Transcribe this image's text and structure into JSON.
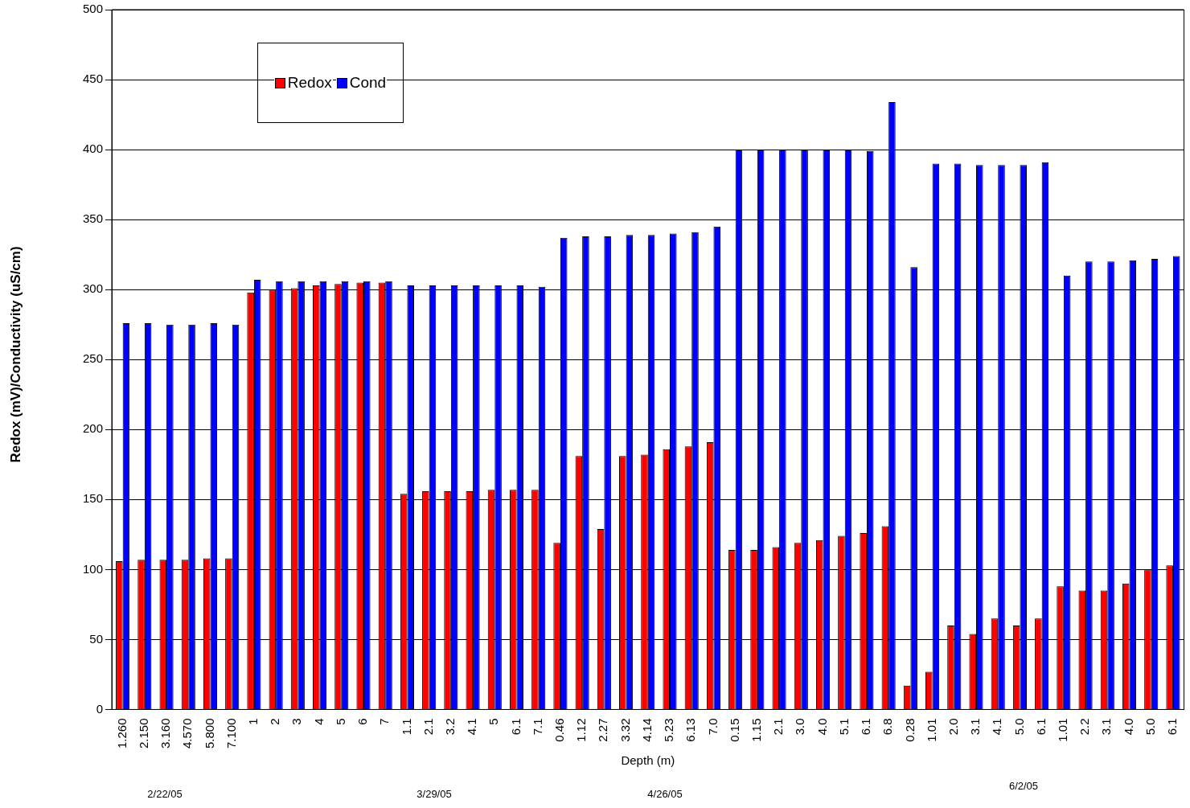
{
  "chart_data": {
    "type": "bar",
    "xlabel": "Depth (m)",
    "ylabel": "Redox (mV)/Conductivity (uS/cm)",
    "categories": [
      "1.260",
      "2.150",
      "3.160",
      "4.570",
      "5.800",
      "7.100",
      "1",
      "2",
      "3",
      "4",
      "5",
      "6",
      "7",
      "1.1",
      "2.1",
      "3.2",
      "4.1",
      "5",
      "6.1",
      "7.1",
      "0.46",
      "1.12",
      "2.27",
      "3.32",
      "4.14",
      "5.23",
      "6.13",
      "7.0",
      "0.15",
      "1.15",
      "2.1",
      "3.0",
      "4.0",
      "5.1",
      "6.1",
      "6.8",
      "0.28",
      "1.01",
      "2.0",
      "3.1",
      "4.1",
      "5.0",
      "6.1",
      "1.01",
      "2.2",
      "3.1",
      "4.0",
      "5.0",
      "6.1"
    ],
    "series": [
      {
        "name": "Redox",
        "color": "#ff0000",
        "values": [
          106,
          107,
          107,
          107,
          108,
          108,
          298,
          300,
          301,
          303,
          304,
          305,
          305,
          154,
          156,
          156,
          156,
          157,
          157,
          157,
          119,
          181,
          129,
          181,
          182,
          186,
          188,
          191,
          114,
          114,
          116,
          119,
          121,
          124,
          126,
          131,
          17,
          27,
          60,
          54,
          65,
          60,
          65,
          88,
          85,
          85,
          90,
          100,
          103
        ]
      },
      {
        "name": "Cond",
        "color": "#0000ff",
        "values": [
          276,
          276,
          275,
          275,
          276,
          275,
          307,
          306,
          306,
          306,
          306,
          306,
          306,
          303,
          303,
          303,
          303,
          303,
          303,
          302,
          337,
          338,
          338,
          339,
          339,
          340,
          341,
          345,
          400,
          400,
          400,
          400,
          400,
          400,
          399,
          434,
          316,
          390,
          390,
          389,
          389,
          389,
          391,
          310,
          320,
          320,
          321,
          322,
          324
        ]
      }
    ],
    "ylim": [
      0,
      500
    ],
    "yticks": [
      0,
      50,
      100,
      150,
      200,
      250,
      300,
      350,
      400,
      450,
      500
    ],
    "grid": "y",
    "legend": "top left",
    "annotations": [
      "2/22/05",
      "3/29/05",
      "4/26/05",
      "6/2/05"
    ]
  }
}
